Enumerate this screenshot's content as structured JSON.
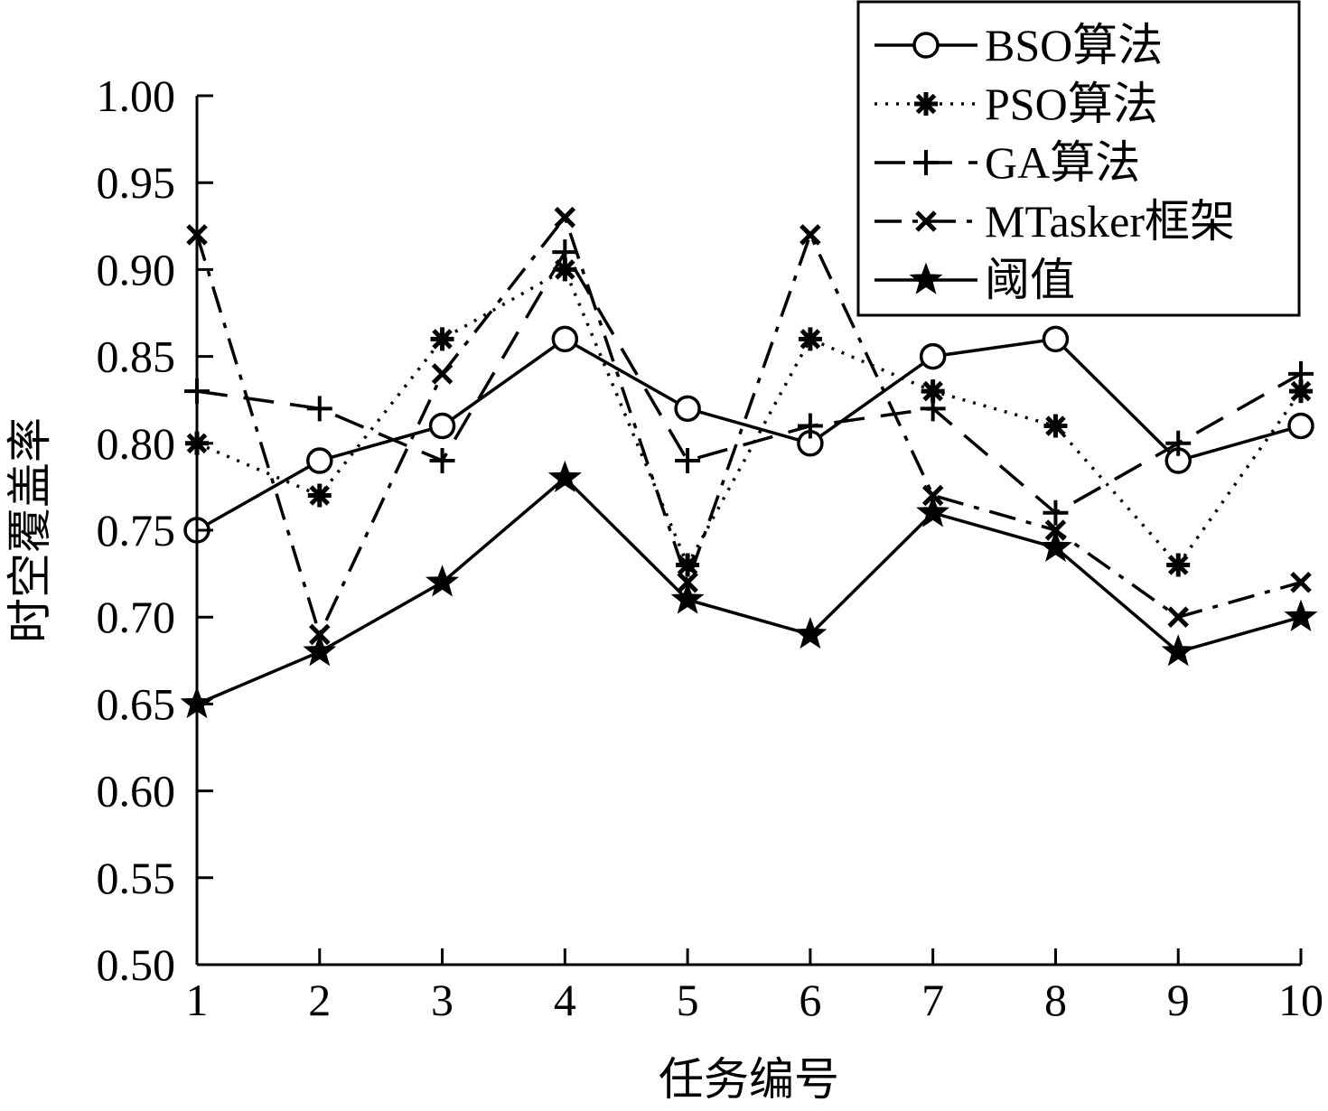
{
  "chart_data": {
    "type": "line",
    "title": "",
    "xlabel": "任务编号",
    "ylabel": "时空覆盖率",
    "x": [
      1,
      2,
      3,
      4,
      5,
      6,
      7,
      8,
      9,
      10
    ],
    "xlim": [
      1,
      10
    ],
    "ylim": [
      0.5,
      1.0
    ],
    "x_ticks": [
      "1",
      "2",
      "3",
      "4",
      "5",
      "6",
      "7",
      "8",
      "9",
      "10"
    ],
    "y_ticks": [
      "0.50",
      "0.55",
      "0.60",
      "0.65",
      "0.70",
      "0.75",
      "0.80",
      "0.85",
      "0.90",
      "0.95",
      "1.00"
    ],
    "grid": false,
    "legend_position": "top-right",
    "series": [
      {
        "name": "BSO算法",
        "line_style": "solid",
        "marker": "circle",
        "values": [
          0.75,
          0.79,
          0.81,
          0.86,
          0.82,
          0.8,
          0.85,
          0.86,
          0.79,
          0.81
        ]
      },
      {
        "name": "PSO算法",
        "line_style": "dotted",
        "marker": "asterisk",
        "values": [
          0.8,
          0.77,
          0.86,
          0.9,
          0.73,
          0.86,
          0.83,
          0.81,
          0.73,
          0.83
        ]
      },
      {
        "name": "GA算法",
        "line_style": "dashed",
        "marker": "plus",
        "values": [
          0.83,
          0.82,
          0.79,
          0.91,
          0.79,
          0.81,
          0.82,
          0.76,
          0.8,
          0.84
        ]
      },
      {
        "name": "MTasker框架",
        "line_style": "dashdot",
        "marker": "x",
        "values": [
          0.92,
          0.69,
          0.84,
          0.93,
          0.72,
          0.92,
          0.77,
          0.75,
          0.7,
          0.72
        ]
      },
      {
        "name": "阈值",
        "line_style": "solid",
        "marker": "star",
        "values": [
          0.65,
          0.68,
          0.72,
          0.78,
          0.71,
          0.69,
          0.76,
          0.74,
          0.68,
          0.7
        ]
      }
    ],
    "colors": {
      "line": "#000000",
      "background": "#ffffff"
    }
  }
}
